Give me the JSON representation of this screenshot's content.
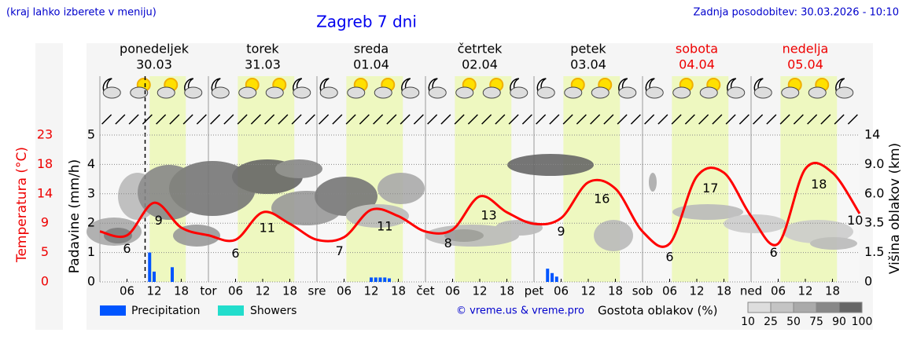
{
  "header": {
    "menu_note": "(kraj lahko izberete v meniju)",
    "title": "Zagreb 7 dni",
    "updated": "Zadnja posodobitev: 30.03.2026 - 10:10"
  },
  "chart_data": {
    "type": "line",
    "ylabel": "Padavine (mm/h)",
    "y2label": "Višina oblakov (km)",
    "templabel": "Temperatura (°C)",
    "ylim": [
      0,
      5
    ],
    "yticks": [
      0,
      1,
      2,
      3,
      4,
      5
    ],
    "templim": [
      0,
      23
    ],
    "tempticks": [
      0,
      {
        "value": 4.6,
        "label": "5"
      },
      {
        "value": 9.2,
        "label": "9"
      },
      {
        "value": 13.8,
        "label": "14"
      },
      {
        "value": 18.4,
        "label": "18"
      },
      23
    ],
    "y2ticks": [
      0,
      1.5,
      3.5,
      {
        "value": 6.0,
        "label": "6.0"
      },
      {
        "value": 9.0,
        "label": "9.0"
      },
      14
    ],
    "xlim": [
      0,
      168
    ],
    "days": [
      {
        "name": "ponedeljek",
        "date": "30.03",
        "abbr": null,
        "weekend": false
      },
      {
        "name": "torek",
        "date": "31.03",
        "abbr": "tor",
        "weekend": false
      },
      {
        "name": "sreda",
        "date": "01.04",
        "abbr": "sre",
        "weekend": false
      },
      {
        "name": "četrtek",
        "date": "02.04",
        "abbr": "čet",
        "weekend": false
      },
      {
        "name": "petek",
        "date": "03.04",
        "abbr": "pet",
        "weekend": false
      },
      {
        "name": "sobota",
        "date": "04.04",
        "abbr": "sob",
        "weekend": true
      },
      {
        "name": "nedelja",
        "date": "05.04",
        "abbr": "ned",
        "weekend": true
      }
    ],
    "hour_labels": [
      "06",
      "12",
      "18"
    ],
    "now_hour": 10,
    "temperature": {
      "name": "Temperatura",
      "color": "#ff0000",
      "x": [
        0,
        6,
        12,
        18,
        24,
        30,
        36,
        42,
        48,
        54,
        60,
        66,
        72,
        78,
        84,
        90,
        96,
        102,
        108,
        114,
        120,
        126,
        132,
        138,
        144,
        150,
        156,
        162,
        168
      ],
      "values": [
        7.9,
        7.3,
        12.4,
        8.5,
        7.3,
        6.6,
        10.9,
        9.1,
        6.6,
        7.0,
        11.3,
        10.3,
        7.9,
        8.2,
        13.4,
        10.9,
        9.1,
        10.0,
        15.6,
        14.6,
        7.9,
        6.0,
        16.5,
        17.1,
        10.3,
        6.0,
        17.7,
        17.1,
        10.7
      ]
    },
    "temp_annotations": [
      {
        "x": 6,
        "text": "6"
      },
      {
        "x": 13,
        "text": "9"
      },
      {
        "x": 30,
        "text": "6"
      },
      {
        "x": 37,
        "text": "11"
      },
      {
        "x": 53,
        "text": "7"
      },
      {
        "x": 63,
        "text": "11"
      },
      {
        "x": 77,
        "text": "8"
      },
      {
        "x": 86,
        "text": "13"
      },
      {
        "x": 102,
        "text": "9"
      },
      {
        "x": 111,
        "text": "16"
      },
      {
        "x": 126,
        "text": "6"
      },
      {
        "x": 135,
        "text": "17"
      },
      {
        "x": 149,
        "text": "6"
      },
      {
        "x": 159,
        "text": "18"
      },
      {
        "x": 167,
        "text": "10"
      }
    ],
    "precipitation": {
      "name": "Precipitation",
      "color": "#0055ff",
      "x": [
        11,
        12,
        16,
        60,
        61,
        62,
        63,
        64,
        99,
        100,
        101
      ],
      "values": [
        1.0,
        0.35,
        0.5,
        0.15,
        0.15,
        0.15,
        0.15,
        0.12,
        0.45,
        0.3,
        0.18
      ]
    },
    "showers": {
      "name": "Showers",
      "color": "#22ddcc"
    },
    "cloud_legend": {
      "title": "Gostota oblakov (%)",
      "levels": [
        10,
        25,
        50,
        75,
        90,
        100
      ]
    },
    "credit": "© vreme.us & vreme.pro"
  }
}
